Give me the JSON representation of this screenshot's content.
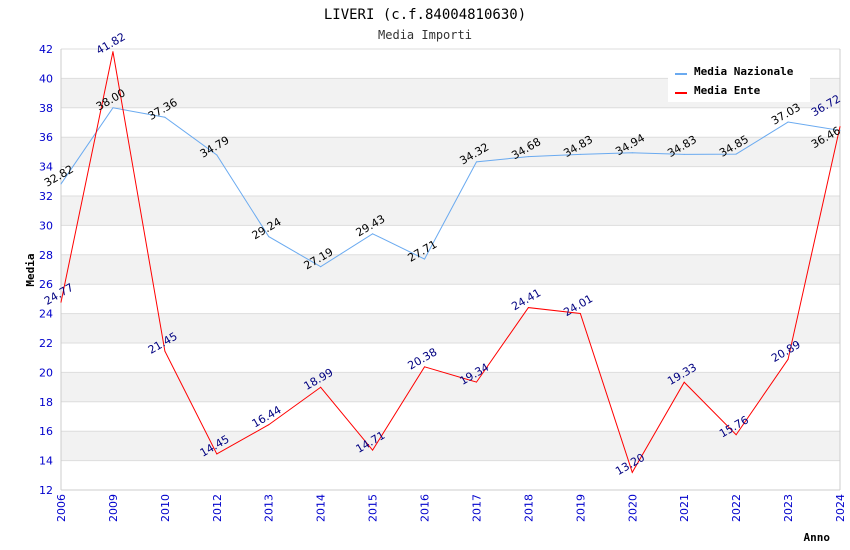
{
  "chart_data": {
    "type": "line",
    "title": "LIVERI (c.f.84004810630)",
    "subtitle": "Media Importi",
    "xlabel": "Anno",
    "ylabel": "Media",
    "ylim": [
      12,
      42
    ],
    "yticks": [
      12,
      14,
      16,
      18,
      20,
      22,
      24,
      26,
      28,
      30,
      32,
      34,
      36,
      38,
      40,
      42
    ],
    "categories": [
      "2006",
      "2009",
      "2010",
      "2012",
      "2013",
      "2014",
      "2015",
      "2016",
      "2017",
      "2018",
      "2019",
      "2020",
      "2021",
      "2022",
      "2023",
      "2024"
    ],
    "legend_position": "top-right",
    "series": [
      {
        "name": "Media Nazionale",
        "color": "#6aaaf0",
        "label_color": "#000000",
        "values": [
          32.82,
          38.0,
          37.36,
          34.79,
          29.24,
          27.19,
          29.43,
          27.71,
          34.32,
          34.68,
          34.83,
          34.94,
          34.83,
          34.85,
          37.03,
          36.46
        ]
      },
      {
        "name": "Media Ente",
        "color": "#ff0000",
        "label_color": "#000080",
        "values": [
          24.77,
          41.82,
          21.45,
          14.45,
          16.44,
          18.99,
          14.71,
          20.38,
          19.34,
          24.41,
          24.01,
          13.2,
          19.33,
          15.76,
          20.89,
          36.72
        ]
      }
    ]
  }
}
